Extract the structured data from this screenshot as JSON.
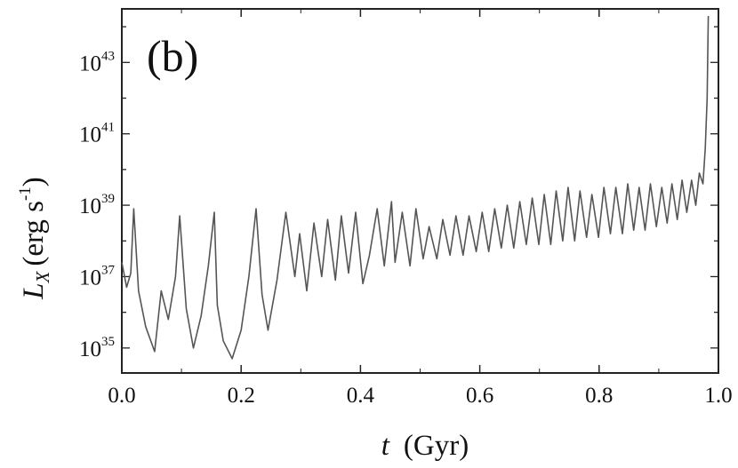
{
  "chart_data": {
    "type": "line",
    "panel_label": "(b)",
    "title": "",
    "xlabel": {
      "var": "t",
      "unit": "(Gyr)"
    },
    "ylabel": {
      "var": "L",
      "sub": "X",
      "unit_open": "(erg s",
      "unit_exp": "-1",
      "unit_close": ")"
    },
    "xlim": [
      0.0,
      1.0
    ],
    "ylim_log10": [
      34.3,
      44.5
    ],
    "yscale": "log",
    "grid": false,
    "line_color": "#555555",
    "frame_color": "#222222",
    "xticks": [
      {
        "value": 0.0,
        "label": "0.0"
      },
      {
        "value": 0.2,
        "label": "0.2"
      },
      {
        "value": 0.4,
        "label": "0.4"
      },
      {
        "value": 0.6,
        "label": "0.6"
      },
      {
        "value": 0.8,
        "label": "0.8"
      },
      {
        "value": 1.0,
        "label": "1.0"
      }
    ],
    "yticks": [
      {
        "log10": 35,
        "base": "10",
        "exp": "35"
      },
      {
        "log10": 37,
        "base": "10",
        "exp": "37"
      },
      {
        "log10": 39,
        "base": "10",
        "exp": "39"
      },
      {
        "log10": 41,
        "base": "10",
        "exp": "41"
      },
      {
        "log10": 43,
        "base": "10",
        "exp": "43"
      }
    ],
    "series": [
      {
        "values_note": "peaks and troughs of L_X versus t (Gyr); y as log10 of erg s^-1",
        "x": [
          0.0,
          0.008,
          0.015,
          0.02,
          0.028,
          0.04,
          0.055,
          0.066,
          0.078,
          0.09,
          0.097,
          0.108,
          0.12,
          0.133,
          0.145,
          0.155,
          0.16,
          0.17,
          0.185,
          0.2,
          0.213,
          0.225,
          0.235,
          0.245,
          0.26,
          0.275,
          0.29,
          0.298,
          0.31,
          0.322,
          0.335,
          0.345,
          0.358,
          0.368,
          0.38,
          0.392,
          0.404,
          0.415,
          0.428,
          0.44,
          0.452,
          0.458,
          0.47,
          0.483,
          0.493,
          0.505,
          0.515,
          0.528,
          0.538,
          0.55,
          0.56,
          0.572,
          0.582,
          0.594,
          0.604,
          0.615,
          0.625,
          0.636,
          0.646,
          0.657,
          0.667,
          0.678,
          0.688,
          0.699,
          0.708,
          0.719,
          0.728,
          0.739,
          0.748,
          0.759,
          0.768,
          0.779,
          0.788,
          0.799,
          0.808,
          0.819,
          0.828,
          0.839,
          0.848,
          0.858,
          0.867,
          0.877,
          0.886,
          0.896,
          0.905,
          0.914,
          0.922,
          0.931,
          0.939,
          0.947,
          0.955,
          0.962,
          0.968,
          0.974,
          0.978,
          0.981,
          0.983
        ],
        "y_log10": [
          37.4,
          36.7,
          37.1,
          38.9,
          36.6,
          35.6,
          34.9,
          36.6,
          35.8,
          37.0,
          38.7,
          36.1,
          35.0,
          35.9,
          37.3,
          38.8,
          36.2,
          35.2,
          34.7,
          35.5,
          37.0,
          38.9,
          36.5,
          35.5,
          36.9,
          38.8,
          37.0,
          38.2,
          36.6,
          38.5,
          37.0,
          38.6,
          36.9,
          38.7,
          37.1,
          38.8,
          36.8,
          37.6,
          38.9,
          37.3,
          39.1,
          37.4,
          38.8,
          37.3,
          38.9,
          37.5,
          38.4,
          37.5,
          38.6,
          37.6,
          38.7,
          37.6,
          38.7,
          37.7,
          38.8,
          37.7,
          38.9,
          37.8,
          39.0,
          37.8,
          39.1,
          37.9,
          39.2,
          37.9,
          39.3,
          37.9,
          39.4,
          38.0,
          39.5,
          38.0,
          39.4,
          38.1,
          39.3,
          38.1,
          39.5,
          38.2,
          39.5,
          38.2,
          39.6,
          38.3,
          39.5,
          38.3,
          39.6,
          38.4,
          39.5,
          38.5,
          39.6,
          38.6,
          39.7,
          38.8,
          39.7,
          39.0,
          39.9,
          39.6,
          40.6,
          42.0,
          44.3
        ]
      }
    ]
  }
}
